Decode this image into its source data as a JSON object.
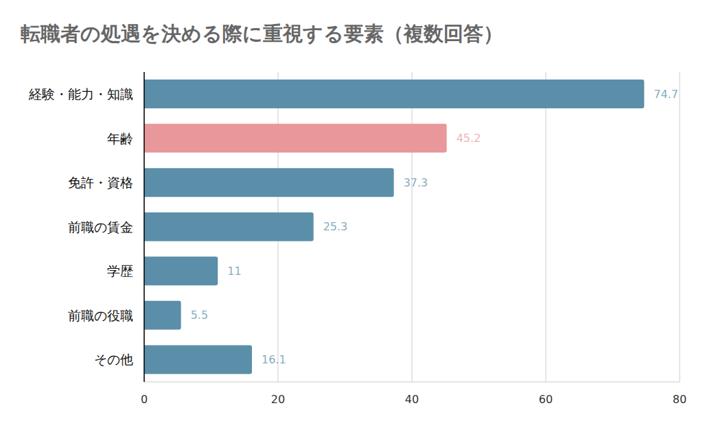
{
  "chart_data": {
    "type": "bar",
    "title": "転職者の処遇を決める際に重視する要素（複数回答）",
    "orientation": "horizontal",
    "categories": [
      "経験・能力・知識",
      "年齢",
      "免許・資格",
      "前職の賃金",
      "学歴",
      "前職の役職",
      "その他"
    ],
    "values": [
      74.7,
      45.2,
      37.3,
      25.3,
      11,
      5.5,
      16.1
    ],
    "colors": [
      "#5b8ea9",
      "#e8979a",
      "#5b8ea9",
      "#5b8ea9",
      "#5b8ea9",
      "#5b8ea9",
      "#5b8ea9"
    ],
    "xlim": [
      0,
      80
    ],
    "xticks": [
      0,
      20,
      40,
      60,
      80
    ],
    "grid": true,
    "data_labels": true
  }
}
